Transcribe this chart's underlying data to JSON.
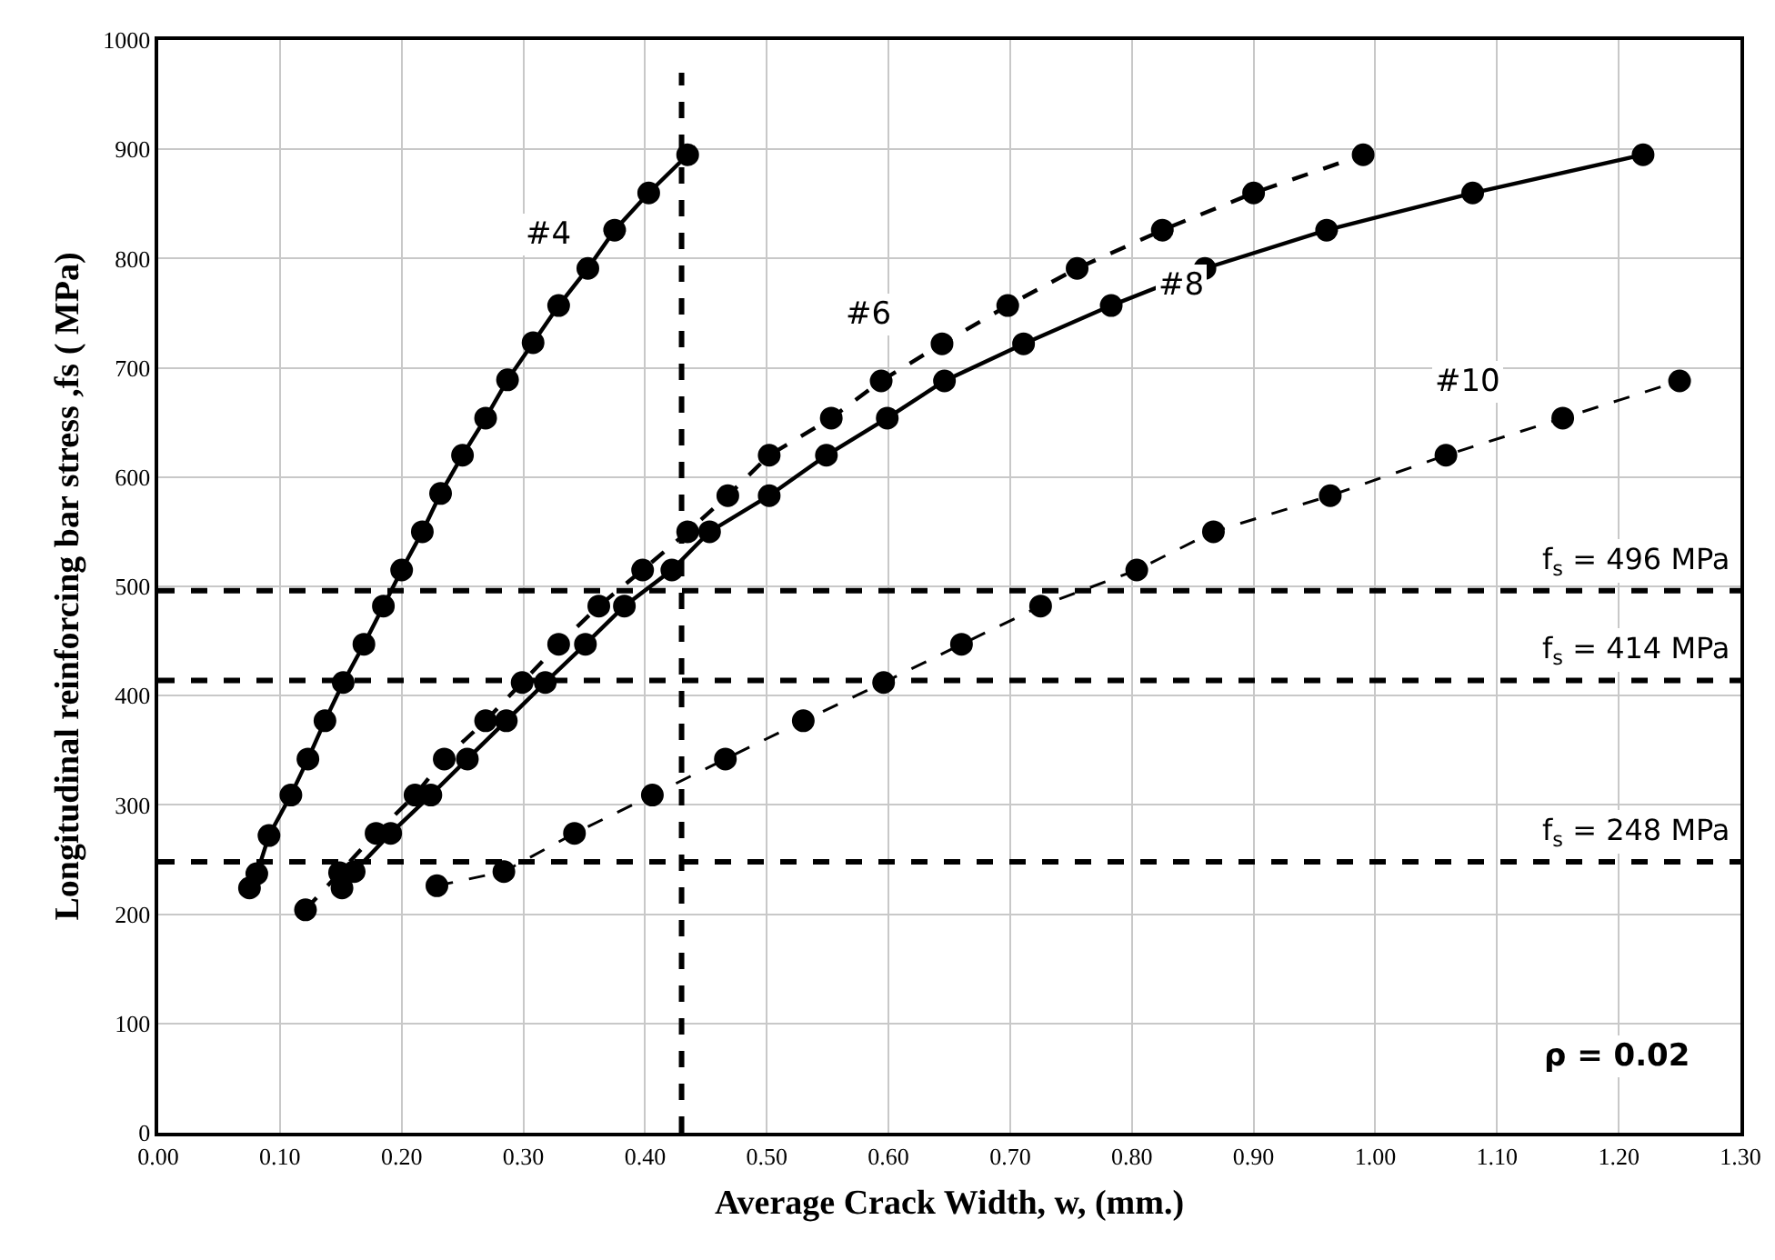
{
  "chart_data": {
    "type": "line",
    "xlabel": "Average Crack Width, w, (mm.)",
    "ylabel": "Longitudinal reinforcing bar stress ,fs ( MPa)",
    "xlim": [
      0,
      1.3
    ],
    "ylim": [
      0,
      1000
    ],
    "xticks": [
      {
        "value": 0,
        "label": "0.00"
      },
      {
        "value": 0.1,
        "label": "0.10"
      },
      {
        "value": 0.2,
        "label": "0.20"
      },
      {
        "value": 0.3,
        "label": "0.30"
      },
      {
        "value": 0.4,
        "label": "0.40"
      },
      {
        "value": 0.5,
        "label": "0.50"
      },
      {
        "value": 0.6,
        "label": "0.60"
      },
      {
        "value": 0.7,
        "label": "0.70"
      },
      {
        "value": 0.8,
        "label": "0.80"
      },
      {
        "value": 0.9,
        "label": "0.90"
      },
      {
        "value": 1,
        "label": "1.00"
      },
      {
        "value": 1.1,
        "label": "1.10"
      },
      {
        "value": 1.2,
        "label": "1.20"
      },
      {
        "value": 1.3,
        "label": "1.30"
      }
    ],
    "yticks": [
      0,
      100,
      200,
      300,
      400,
      500,
      600,
      700,
      800,
      900,
      1000
    ],
    "grid": true,
    "marker": "circle",
    "series": [
      {
        "color": "#000000",
        "line_style": "solid",
        "x": [
          0.075,
          0.081,
          0.091,
          0.109,
          0.123,
          0.137,
          0.152,
          0.169,
          0.185,
          0.2,
          0.217,
          0.232,
          0.25,
          0.269,
          0.287,
          0.308,
          0.329,
          0.353,
          0.375,
          0.403,
          0.435
        ],
        "values": [
          224,
          237,
          272,
          309,
          342,
          377,
          412,
          447,
          482,
          515,
          550,
          585,
          620,
          654,
          689,
          723,
          757,
          791,
          826,
          860,
          895
        ]
      },
      {
        "color": "#000000",
        "line_style": "dashed",
        "x": [
          0.121,
          0.149,
          0.179,
          0.211,
          0.235,
          0.269,
          0.299,
          0.329,
          0.362,
          0.398,
          0.435,
          0.468,
          0.502,
          0.553,
          0.594,
          0.644,
          0.698,
          0.755,
          0.825,
          0.9,
          0.99
        ],
        "values": [
          204,
          238,
          274,
          309,
          342,
          377,
          412,
          447,
          482,
          515,
          550,
          583,
          620,
          654,
          688,
          722,
          757,
          791,
          826,
          860,
          895
        ]
      },
      {
        "color": "#000000",
        "line_style": "solid",
        "x": [
          0.151,
          0.161,
          0.191,
          0.224,
          0.254,
          0.286,
          0.318,
          0.351,
          0.383,
          0.422,
          0.453,
          0.502,
          0.549,
          0.599,
          0.646,
          0.711,
          0.783,
          0.86,
          0.96,
          1.08,
          1.22
        ],
        "values": [
          224,
          239,
          274,
          309,
          342,
          377,
          412,
          447,
          482,
          515,
          550,
          583,
          620,
          654,
          688,
          722,
          757,
          791,
          826,
          860,
          895
        ]
      },
      {
        "color": "#000000",
        "line_style": "dashed",
        "x": [
          0.229,
          0.284,
          0.342,
          0.406,
          0.466,
          0.53,
          0.596,
          0.66,
          0.725,
          0.804,
          0.867,
          0.963,
          1.058,
          1.154,
          1.25
        ],
        "values": [
          226,
          239,
          274,
          309,
          342,
          377,
          412,
          447,
          482,
          515,
          550,
          583,
          620,
          654,
          688
        ]
      }
    ],
    "ref_lines": [
      {
        "axis": "y",
        "value": 496,
        "label": "f$_{s}$ = 496 MPa",
        "line_style": "dashed"
      },
      {
        "axis": "y",
        "value": 414,
        "label": "f$_{s}$ = 414 MPa",
        "line_style": "dashed"
      },
      {
        "axis": "y",
        "value": 248,
        "label": "f$_{s}$ = 248 MPa",
        "line_style": "dashed"
      },
      {
        "axis": "x",
        "value": 0.43,
        "line_style": "dashed"
      }
    ],
    "annotations": [
      {
        "text": "#4",
        "x": 0.32,
        "y": 822
      },
      {
        "text": "#6",
        "x": 0.583,
        "y": 748
      },
      {
        "text": "#8",
        "x": 0.84,
        "y": 775
      },
      {
        "text": "#10",
        "x": 1.076,
        "y": 688
      },
      "ρ = 0.02"
    ]
  }
}
